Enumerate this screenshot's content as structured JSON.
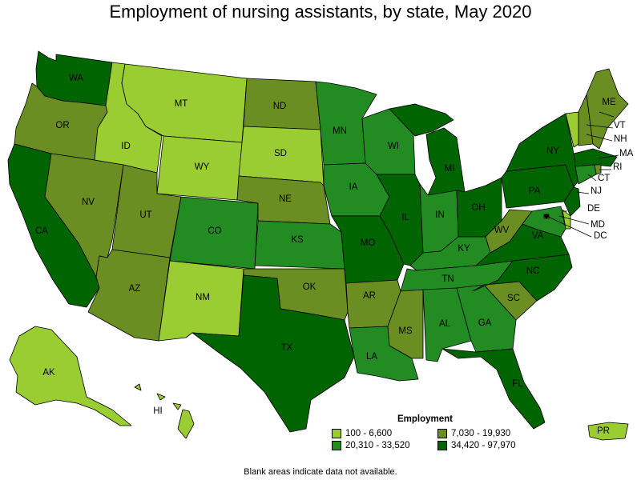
{
  "title": "Employment of nursing assistants, by state, May 2020",
  "legend": {
    "title": "Employment",
    "items": [
      {
        "label": "100 - 6,600",
        "color": "#9acd32"
      },
      {
        "label": "7,030 - 19,930",
        "color": "#6b8e23"
      },
      {
        "label": "20,310 - 33,520",
        "color": "#228b22"
      },
      {
        "label": "34,420 - 97,970",
        "color": "#006400"
      }
    ]
  },
  "footnote": "Blank areas indicate data not available.",
  "states": [
    {
      "abbr": "WA",
      "bin": 3
    },
    {
      "abbr": "OR",
      "bin": 1
    },
    {
      "abbr": "CA",
      "bin": 3
    },
    {
      "abbr": "NV",
      "bin": 1
    },
    {
      "abbr": "ID",
      "bin": 0
    },
    {
      "abbr": "MT",
      "bin": 0
    },
    {
      "abbr": "WY",
      "bin": 0
    },
    {
      "abbr": "UT",
      "bin": 1
    },
    {
      "abbr": "AZ",
      "bin": 1
    },
    {
      "abbr": "CO",
      "bin": 2
    },
    {
      "abbr": "NM",
      "bin": 0
    },
    {
      "abbr": "ND",
      "bin": 1
    },
    {
      "abbr": "SD",
      "bin": 0
    },
    {
      "abbr": "NE",
      "bin": 1
    },
    {
      "abbr": "KS",
      "bin": 2
    },
    {
      "abbr": "OK",
      "bin": 1
    },
    {
      "abbr": "TX",
      "bin": 3
    },
    {
      "abbr": "MN",
      "bin": 2
    },
    {
      "abbr": "IA",
      "bin": 2
    },
    {
      "abbr": "MO",
      "bin": 3
    },
    {
      "abbr": "AR",
      "bin": 1
    },
    {
      "abbr": "LA",
      "bin": 2
    },
    {
      "abbr": "WI",
      "bin": 2
    },
    {
      "abbr": "IL",
      "bin": 3
    },
    {
      "abbr": "MI",
      "bin": 3
    },
    {
      "abbr": "IN",
      "bin": 2
    },
    {
      "abbr": "OH",
      "bin": 3
    },
    {
      "abbr": "KY",
      "bin": 2
    },
    {
      "abbr": "TN",
      "bin": 2
    },
    {
      "abbr": "MS",
      "bin": 1
    },
    {
      "abbr": "AL",
      "bin": 2
    },
    {
      "abbr": "GA",
      "bin": 2
    },
    {
      "abbr": "FL",
      "bin": 3
    },
    {
      "abbr": "SC",
      "bin": 1
    },
    {
      "abbr": "NC",
      "bin": 3
    },
    {
      "abbr": "VA",
      "bin": 3
    },
    {
      "abbr": "WV",
      "bin": 1
    },
    {
      "abbr": "PA",
      "bin": 3
    },
    {
      "abbr": "NY",
      "bin": 3
    },
    {
      "abbr": "VT",
      "bin": 0
    },
    {
      "abbr": "NH",
      "bin": 1
    },
    {
      "abbr": "ME",
      "bin": 1
    },
    {
      "abbr": "MA",
      "bin": 3
    },
    {
      "abbr": "RI",
      "bin": 1
    },
    {
      "abbr": "CT",
      "bin": 2
    },
    {
      "abbr": "NJ",
      "bin": 3
    },
    {
      "abbr": "DE",
      "bin": 0
    },
    {
      "abbr": "MD",
      "bin": 2
    },
    {
      "abbr": "DC",
      "bin": 0
    },
    {
      "abbr": "AK",
      "bin": 0
    },
    {
      "abbr": "HI",
      "bin": 0
    },
    {
      "abbr": "PR",
      "bin": 0
    }
  ]
}
